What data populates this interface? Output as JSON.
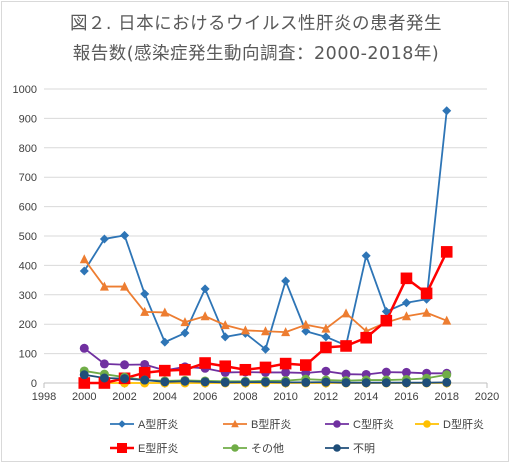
{
  "chart_data": {
    "type": "line",
    "title_line1": "図２. 日本におけるウイルス性肝炎の患者発生",
    "title_line2": "報告数(感染症発生動向調査：2000-2018年)",
    "xlabel": "",
    "ylabel": "",
    "xlim": [
      1998,
      2020
    ],
    "ylim": [
      0,
      1000
    ],
    "x_ticks": [
      1998,
      2000,
      2002,
      2004,
      2006,
      2008,
      2010,
      2012,
      2014,
      2016,
      2018,
      2020
    ],
    "y_ticks": [
      0,
      100,
      200,
      300,
      400,
      500,
      600,
      700,
      800,
      900,
      1000
    ],
    "grid": "horizontal",
    "legend_position": "bottom",
    "x": [
      2000,
      2001,
      2002,
      2003,
      2004,
      2005,
      2006,
      2007,
      2008,
      2009,
      2010,
      2011,
      2012,
      2013,
      2014,
      2015,
      2016,
      2017,
      2018
    ],
    "series": [
      {
        "name": "A型肝炎",
        "color": "#2e75b6",
        "marker": "diamond",
        "values": [
          381,
          490,
          502,
          303,
          139,
          170,
          320,
          157,
          169,
          115,
          347,
          176,
          157,
          128,
          433,
          243,
          273,
          285,
          926
        ]
      },
      {
        "name": "B型肝炎",
        "color": "#ed7d31",
        "marker": "triangle",
        "values": [
          421,
          328,
          328,
          242,
          240,
          207,
          227,
          197,
          179,
          176,
          173,
          198,
          185,
          237,
          176,
          206,
          227,
          239,
          212
        ]
      },
      {
        "name": "C型肝炎",
        "color": "#7030a0",
        "marker": "circle",
        "values": [
          118,
          65,
          62,
          63,
          43,
          55,
          50,
          36,
          37,
          36,
          36,
          34,
          40,
          30,
          29,
          37,
          36,
          33,
          33
        ]
      },
      {
        "name": "D型肝炎",
        "color": "#ffc000",
        "marker": "circle",
        "values": [
          0,
          0,
          0,
          0,
          0,
          0,
          0,
          0,
          0,
          0,
          0,
          0,
          0,
          0,
          0,
          0,
          0,
          0,
          0
        ]
      },
      {
        "name": "E型肝炎",
        "color": "#ff0000",
        "marker": "square",
        "values": [
          0,
          0,
          16,
          35,
          42,
          45,
          68,
          57,
          45,
          53,
          66,
          61,
          121,
          126,
          154,
          212,
          356,
          305,
          446
        ]
      },
      {
        "name": "その他",
        "color": "#70ad47",
        "marker": "circle",
        "values": [
          41,
          30,
          20,
          10,
          7,
          9,
          7,
          6,
          6,
          7,
          8,
          13,
          10,
          8,
          10,
          10,
          12,
          16,
          28
        ]
      },
      {
        "name": "不明",
        "color": "#1f4e79",
        "marker": "circle",
        "values": [
          28,
          17,
          15,
          10,
          4,
          6,
          4,
          2,
          3,
          3,
          2,
          2,
          3,
          1,
          1,
          1,
          1,
          1,
          2
        ]
      }
    ]
  }
}
